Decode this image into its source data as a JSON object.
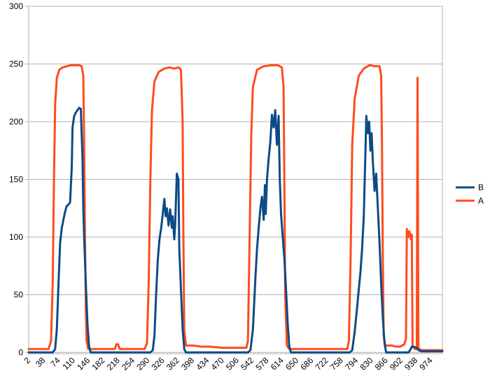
{
  "chart_data": {
    "type": "line",
    "title": "",
    "xlabel": "",
    "ylabel": "",
    "ylim": [
      0,
      300
    ],
    "xlim": [
      2,
      1002
    ],
    "yticks": [
      0,
      50,
      100,
      150,
      200,
      250,
      300
    ],
    "xticks": [
      2,
      38,
      74,
      110,
      146,
      182,
      218,
      254,
      290,
      326,
      362,
      398,
      434,
      470,
      506,
      542,
      578,
      614,
      650,
      686,
      722,
      758,
      794,
      830,
      866,
      902,
      938,
      974
    ],
    "grid": "horizontal",
    "legend": "right",
    "colors": {
      "B": "#0e4a85",
      "A": "#ff4b1e"
    },
    "series": [
      {
        "name": "B",
        "color": "#0e4a85",
        "points": [
          [
            2,
            0
          ],
          [
            60,
            0
          ],
          [
            66,
            3
          ],
          [
            70,
            20
          ],
          [
            74,
            60
          ],
          [
            78,
            95
          ],
          [
            82,
            108
          ],
          [
            86,
            115
          ],
          [
            90,
            122
          ],
          [
            94,
            127
          ],
          [
            98,
            128
          ],
          [
            102,
            130
          ],
          [
            106,
            160
          ],
          [
            108,
            195
          ],
          [
            112,
            205
          ],
          [
            116,
            208
          ],
          [
            120,
            210
          ],
          [
            124,
            212
          ],
          [
            128,
            211
          ],
          [
            130,
            190
          ],
          [
            132,
            170
          ],
          [
            134,
            125
          ],
          [
            136,
            100
          ],
          [
            140,
            60
          ],
          [
            144,
            25
          ],
          [
            148,
            5
          ],
          [
            152,
            0
          ],
          [
            296,
            0
          ],
          [
            302,
            2
          ],
          [
            306,
            15
          ],
          [
            310,
            50
          ],
          [
            314,
            80
          ],
          [
            318,
            98
          ],
          [
            322,
            107
          ],
          [
            326,
            120
          ],
          [
            330,
            133
          ],
          [
            333,
            118
          ],
          [
            336,
            125
          ],
          [
            340,
            110
          ],
          [
            344,
            124
          ],
          [
            348,
            108
          ],
          [
            350,
            118
          ],
          [
            354,
            98
          ],
          [
            356,
            110
          ],
          [
            360,
            155
          ],
          [
            364,
            150
          ],
          [
            366,
            90
          ],
          [
            370,
            55
          ],
          [
            374,
            20
          ],
          [
            378,
            3
          ],
          [
            382,
            0
          ],
          [
            532,
            0
          ],
          [
            538,
            2
          ],
          [
            544,
            20
          ],
          [
            550,
            65
          ],
          [
            554,
            90
          ],
          [
            558,
            108
          ],
          [
            562,
            125
          ],
          [
            566,
            135
          ],
          [
            570,
            115
          ],
          [
            573,
            145
          ],
          [
            575,
            120
          ],
          [
            578,
            150
          ],
          [
            582,
            168
          ],
          [
            586,
            182
          ],
          [
            590,
            206
          ],
          [
            594,
            195
          ],
          [
            598,
            210
          ],
          [
            602,
            180
          ],
          [
            606,
            205
          ],
          [
            609,
            150
          ],
          [
            612,
            120
          ],
          [
            616,
            100
          ],
          [
            620,
            82
          ],
          [
            624,
            55
          ],
          [
            628,
            25
          ],
          [
            632,
            5
          ],
          [
            636,
            0
          ],
          [
            778,
            0
          ],
          [
            784,
            2
          ],
          [
            790,
            18
          ],
          [
            796,
            40
          ],
          [
            800,
            55
          ],
          [
            804,
            70
          ],
          [
            808,
            90
          ],
          [
            812,
            118
          ],
          [
            816,
            175
          ],
          [
            818,
            205
          ],
          [
            822,
            190
          ],
          [
            825,
            200
          ],
          [
            828,
            175
          ],
          [
            831,
            190
          ],
          [
            834,
            165
          ],
          [
            838,
            140
          ],
          [
            842,
            155
          ],
          [
            846,
            125
          ],
          [
            850,
            95
          ],
          [
            854,
            60
          ],
          [
            858,
            30
          ],
          [
            862,
            8
          ],
          [
            866,
            0
          ],
          [
            920,
            0
          ],
          [
            924,
            2
          ],
          [
            928,
            5
          ],
          [
            932,
            5
          ],
          [
            940,
            4
          ],
          [
            944,
            2
          ],
          [
            952,
            1
          ],
          [
            1002,
            1
          ]
        ]
      },
      {
        "name": "A",
        "color": "#ff4b1e",
        "points": [
          [
            2,
            3
          ],
          [
            50,
            3
          ],
          [
            56,
            10
          ],
          [
            60,
            60
          ],
          [
            63,
            150
          ],
          [
            66,
            215
          ],
          [
            70,
            238
          ],
          [
            76,
            245
          ],
          [
            84,
            247
          ],
          [
            94,
            248
          ],
          [
            104,
            249
          ],
          [
            114,
            249
          ],
          [
            124,
            249
          ],
          [
            130,
            248
          ],
          [
            134,
            240
          ],
          [
            136,
            180
          ],
          [
            138,
            100
          ],
          [
            140,
            40
          ],
          [
            142,
            10
          ],
          [
            146,
            3
          ],
          [
            210,
            3
          ],
          [
            214,
            7
          ],
          [
            218,
            7
          ],
          [
            222,
            3
          ],
          [
            282,
            3
          ],
          [
            288,
            8
          ],
          [
            292,
            60
          ],
          [
            296,
            150
          ],
          [
            300,
            210
          ],
          [
            306,
            235
          ],
          [
            316,
            243
          ],
          [
            330,
            246
          ],
          [
            342,
            247
          ],
          [
            354,
            246
          ],
          [
            364,
            247
          ],
          [
            370,
            245
          ],
          [
            374,
            200
          ],
          [
            376,
            100
          ],
          [
            378,
            20
          ],
          [
            382,
            6
          ],
          [
            400,
            6
          ],
          [
            420,
            5
          ],
          [
            440,
            5
          ],
          [
            470,
            4
          ],
          [
            500,
            4
          ],
          [
            528,
            4
          ],
          [
            532,
            10
          ],
          [
            536,
            100
          ],
          [
            540,
            190
          ],
          [
            544,
            230
          ],
          [
            554,
            245
          ],
          [
            570,
            248
          ],
          [
            590,
            249
          ],
          [
            604,
            249
          ],
          [
            614,
            247
          ],
          [
            618,
            230
          ],
          [
            620,
            150
          ],
          [
            622,
            50
          ],
          [
            626,
            6
          ],
          [
            632,
            3
          ],
          [
            700,
            3
          ],
          [
            720,
            3
          ],
          [
            760,
            3
          ],
          [
            772,
            3
          ],
          [
            776,
            10
          ],
          [
            780,
            80
          ],
          [
            784,
            180
          ],
          [
            790,
            220
          ],
          [
            800,
            240
          ],
          [
            812,
            246
          ],
          [
            826,
            249
          ],
          [
            840,
            248
          ],
          [
            850,
            248
          ],
          [
            854,
            240
          ],
          [
            856,
            180
          ],
          [
            858,
            80
          ],
          [
            860,
            15
          ],
          [
            864,
            6
          ],
          [
            880,
            6
          ],
          [
            890,
            5
          ],
          [
            900,
            5
          ],
          [
            910,
            7
          ],
          [
            914,
            12
          ],
          [
            916,
            107
          ],
          [
            918,
            103
          ],
          [
            920,
            100
          ],
          [
            922,
            105
          ],
          [
            924,
            103
          ],
          [
            926,
            98
          ],
          [
            928,
            102
          ],
          [
            930,
            5
          ],
          [
            936,
            3
          ],
          [
            940,
            3
          ],
          [
            942,
            238
          ],
          [
            944,
            4
          ],
          [
            950,
            2
          ],
          [
            1002,
            2
          ]
        ]
      }
    ]
  }
}
